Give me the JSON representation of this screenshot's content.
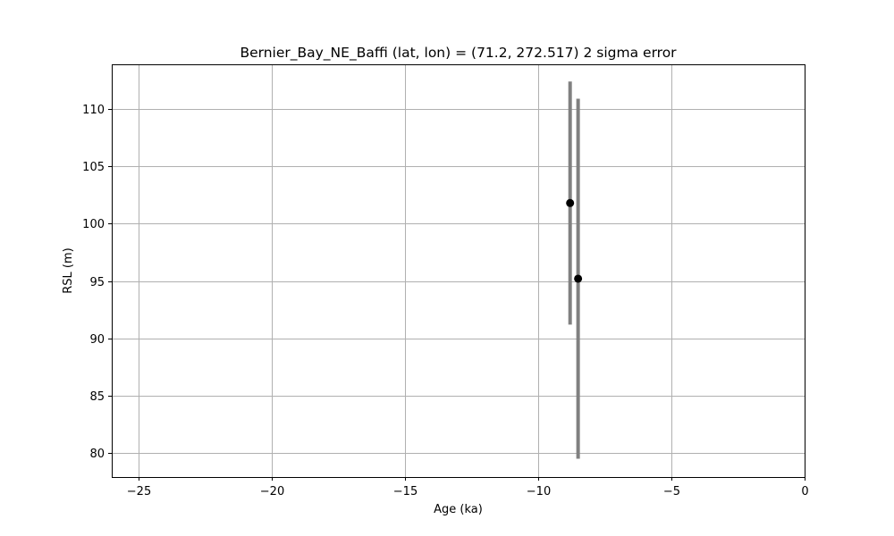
{
  "chart_data": {
    "type": "scatter",
    "title": "Bernier_Bay_NE_Baffi (lat, lon) = (71.2, 272.517)  2 sigma error",
    "xlabel": "Age (ka)",
    "ylabel": "RSL (m)",
    "xlim": [
      -26,
      0
    ],
    "ylim": [
      77.9,
      113.9
    ],
    "xticks": [
      -25,
      -20,
      -15,
      -10,
      -5,
      0
    ],
    "xtick_labels": [
      "−25",
      "−20",
      "−15",
      "−10",
      "−5",
      "0"
    ],
    "yticks": [
      80,
      85,
      90,
      95,
      100,
      105,
      110
    ],
    "ytick_labels": [
      "80",
      "85",
      "90",
      "95",
      "100",
      "105",
      "110"
    ],
    "grid": true,
    "series": [
      {
        "points": [
          {
            "x": -8.8,
            "y": 101.8,
            "y_low": 91.2,
            "y_high": 112.4
          },
          {
            "x": -8.5,
            "y": 95.2,
            "y_low": 79.5,
            "y_high": 110.9
          }
        ],
        "marker_color": "#000000",
        "errorbar_color": "#808080"
      }
    ]
  }
}
